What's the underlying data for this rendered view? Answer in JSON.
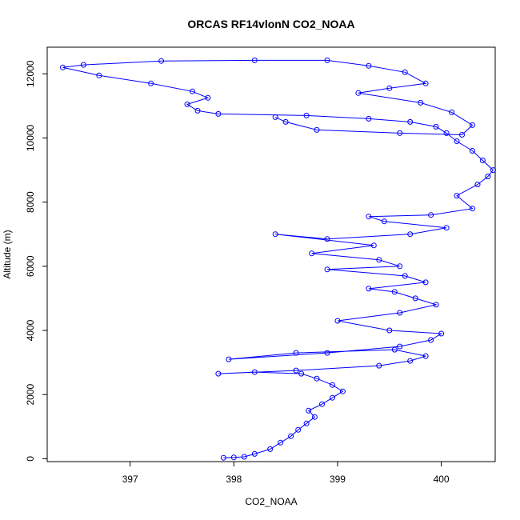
{
  "chart_data": {
    "type": "scatter",
    "title": "ORCAS RF14vlonN CO2_NOAA",
    "xlabel": "CO2_NOAA",
    "ylabel": "Altitude (m)",
    "xlim": [
      396.2,
      400.52
    ],
    "ylim": [
      -90,
      12830
    ],
    "xticks": [
      397,
      398,
      399,
      400
    ],
    "yticks": [
      0,
      2000,
      4000,
      6000,
      8000,
      10000,
      12000
    ],
    "grid": false,
    "legend": "none",
    "color": "#0000ff",
    "series": [
      {
        "points": [
          [
            397.9,
            30
          ],
          [
            398.0,
            40
          ],
          [
            398.1,
            60
          ],
          [
            398.2,
            150
          ],
          [
            398.35,
            300
          ],
          [
            398.45,
            500
          ],
          [
            398.55,
            700
          ],
          [
            398.62,
            900
          ],
          [
            398.7,
            1100
          ],
          [
            398.78,
            1300
          ],
          [
            398.72,
            1500
          ],
          [
            398.85,
            1700
          ],
          [
            398.95,
            1900
          ],
          [
            399.05,
            2100
          ],
          [
            398.95,
            2300
          ],
          [
            398.8,
            2500
          ],
          [
            398.65,
            2650
          ],
          [
            398.2,
            2700
          ],
          [
            397.85,
            2650
          ],
          [
            398.6,
            2750
          ],
          [
            399.4,
            2900
          ],
          [
            399.7,
            3050
          ],
          [
            399.85,
            3200
          ],
          [
            399.55,
            3400
          ],
          [
            398.6,
            3300
          ],
          [
            397.95,
            3100
          ],
          [
            398.9,
            3300
          ],
          [
            399.6,
            3500
          ],
          [
            399.9,
            3700
          ],
          [
            400.0,
            3900
          ],
          [
            399.5,
            4000
          ],
          [
            399.0,
            4300
          ],
          [
            399.6,
            4550
          ],
          [
            399.95,
            4800
          ],
          [
            399.75,
            5000
          ],
          [
            399.55,
            5200
          ],
          [
            399.3,
            5300
          ],
          [
            399.85,
            5500
          ],
          [
            399.65,
            5700
          ],
          [
            398.9,
            5900
          ],
          [
            399.6,
            6000
          ],
          [
            399.4,
            6200
          ],
          [
            398.75,
            6400
          ],
          [
            399.35,
            6650
          ],
          [
            398.4,
            7000
          ],
          [
            398.9,
            6850
          ],
          [
            399.7,
            7000
          ],
          [
            400.05,
            7200
          ],
          [
            399.45,
            7400
          ],
          [
            399.3,
            7550
          ],
          [
            399.9,
            7600
          ],
          [
            400.3,
            7800
          ],
          [
            400.15,
            8200
          ],
          [
            400.35,
            8550
          ],
          [
            400.45,
            8800
          ],
          [
            400.5,
            9000
          ],
          [
            400.4,
            9300
          ],
          [
            400.3,
            9600
          ],
          [
            400.15,
            9900
          ],
          [
            400.05,
            10150
          ],
          [
            399.95,
            10350
          ],
          [
            399.7,
            10500
          ],
          [
            399.3,
            10600
          ],
          [
            398.7,
            10700
          ],
          [
            397.85,
            10750
          ],
          [
            397.65,
            10850
          ],
          [
            397.55,
            11050
          ],
          [
            397.75,
            11250
          ],
          [
            397.6,
            11450
          ],
          [
            397.2,
            11700
          ],
          [
            396.7,
            11950
          ],
          [
            396.35,
            12200
          ],
          [
            396.55,
            12280
          ],
          [
            397.3,
            12400
          ],
          [
            398.2,
            12420
          ],
          [
            398.9,
            12420
          ],
          [
            399.3,
            12250
          ],
          [
            399.65,
            12050
          ],
          [
            399.85,
            11700
          ],
          [
            399.5,
            11550
          ],
          [
            399.2,
            11400
          ],
          [
            399.8,
            11100
          ],
          [
            400.1,
            10800
          ],
          [
            400.3,
            10400
          ],
          [
            400.2,
            10100
          ],
          [
            399.6,
            10150
          ],
          [
            398.8,
            10250
          ],
          [
            398.5,
            10500
          ],
          [
            398.4,
            10650
          ]
        ]
      }
    ]
  }
}
